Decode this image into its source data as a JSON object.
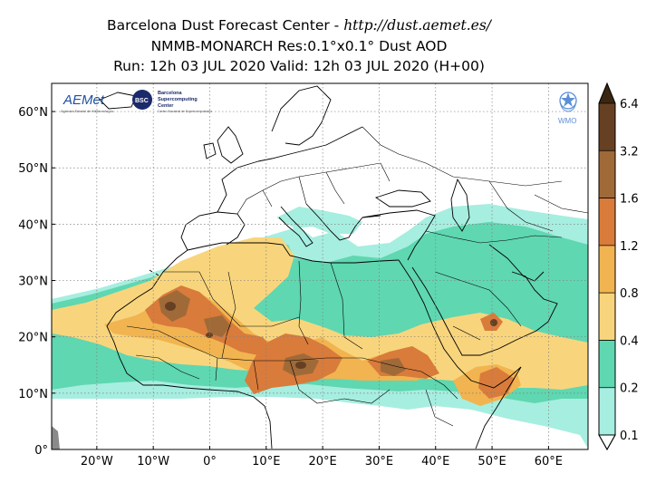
{
  "title": {
    "line1_prefix": "Barcelona Dust Forecast Center - ",
    "line1_url": "http://dust.aemet.es/",
    "line2": "NMMB-MONARCH   Res:0.1°x0.1°   Dust AOD",
    "line3": "Run: 12h 03 JUL 2020   Valid: 12h 03 JUL 2020 (H+00)"
  },
  "map": {
    "lon_range": [
      -28,
      67
    ],
    "lat_range": [
      0,
      65
    ],
    "lon_ticks": [
      {
        "value": -20,
        "label": "20°W"
      },
      {
        "value": -10,
        "label": "10°W"
      },
      {
        "value": 0,
        "label": "0°"
      },
      {
        "value": 10,
        "label": "10°E"
      },
      {
        "value": 20,
        "label": "20°E"
      },
      {
        "value": 30,
        "label": "30°E"
      },
      {
        "value": 40,
        "label": "40°E"
      },
      {
        "value": 50,
        "label": "50°E"
      },
      {
        "value": 60,
        "label": "60°E"
      }
    ],
    "lat_ticks": [
      {
        "value": 0,
        "label": "0°"
      },
      {
        "value": 10,
        "label": "10°N"
      },
      {
        "value": 20,
        "label": "20°N"
      },
      {
        "value": 30,
        "label": "30°N"
      },
      {
        "value": 40,
        "label": "40°N"
      },
      {
        "value": 50,
        "label": "50°N"
      },
      {
        "value": 60,
        "label": "60°N"
      }
    ],
    "grid": true,
    "grid_color": "#808080"
  },
  "colorbar": {
    "levels": [
      "0.1",
      "0.2",
      "0.4",
      "0.8",
      "1.2",
      "1.6",
      "3.2",
      "6.4"
    ],
    "colors": [
      "#a6eee0",
      "#5fd7b1",
      "#f8d57c",
      "#f1b450",
      "#d97b3b",
      "#9f6a38",
      "#664022",
      "#3a2612"
    ],
    "extend": "both"
  },
  "logos": {
    "aemet": "AEMet",
    "aemet_sub": "Agencia Estatal de Meteorología",
    "bsc": "BSC",
    "bsc_name_1": "Barcelona",
    "bsc_name_2": "Supercomputing",
    "bsc_name_3": "Center",
    "bsc_sub": "Centro Nacional de Supercomputación",
    "wmo": "WMO"
  }
}
